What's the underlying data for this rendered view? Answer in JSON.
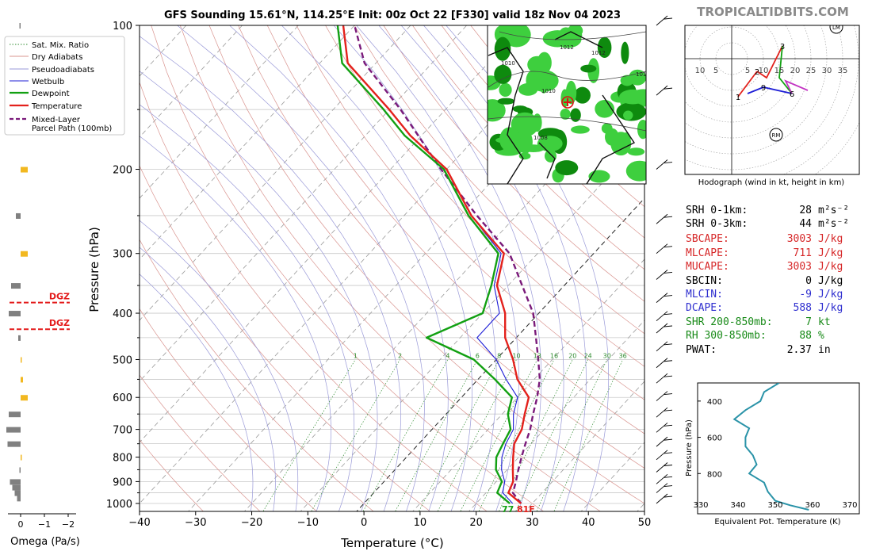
{
  "header": {
    "title": "GFS Sounding 15.61°N, 114.25°E Init: 00z Oct 22 [F330] valid 18z Nov 04 2023",
    "watermark": "TROPICALTIDBITS.COM"
  },
  "chart_data": [
    {
      "type": "line",
      "title": "",
      "xlabel": "Temperature (°C)",
      "ylabel": "Pressure (hPa)",
      "xlim": [
        -40,
        50
      ],
      "ylim": [
        1050,
        100
      ],
      "y_scale": "log",
      "xticks": [
        "−40",
        "−30",
        "−20",
        "−10",
        "0",
        "10",
        "20",
        "30",
        "40",
        "50"
      ],
      "yticks": [
        "100",
        "200",
        "300",
        "400",
        "500",
        "600",
        "700",
        "800",
        "900",
        "1000"
      ],
      "grid": true,
      "legend_position": "outside-left-top",
      "legend": [
        {
          "label": "Sat. Mix. Ratio",
          "color": "#2e8b2e",
          "style": "dotted"
        },
        {
          "label": "Dry Adiabats",
          "color": "#d9948f",
          "style": "solid"
        },
        {
          "label": "Pseudoadiabats",
          "color": "#9a9ad8",
          "style": "solid"
        },
        {
          "label": "Wetbulb",
          "color": "#1c1cd6",
          "style": "solid"
        },
        {
          "label": "Dewpoint",
          "color": "#12a012",
          "style": "solid"
        },
        {
          "label": "Temperature",
          "color": "#e3211c",
          "style": "solid"
        },
        {
          "label": "Mixed-Layer Parcel Path (100mb)",
          "color": "#7a1a7a",
          "style": "dashed"
        }
      ],
      "mixing_ratio_labels": [
        "1",
        "2",
        "4",
        "6",
        "8",
        "10",
        "13",
        "16",
        "20",
        "24",
        "30",
        "36"
      ],
      "series": [
        {
          "name": "Temperature",
          "points": [
            [
              28.0,
              1000
            ],
            [
              24.0,
              950
            ],
            [
              23.0,
              900
            ],
            [
              21.0,
              850
            ],
            [
              19.0,
              800
            ],
            [
              17.0,
              750
            ],
            [
              16.0,
              700
            ],
            [
              14.0,
              650
            ],
            [
              12.0,
              600
            ],
            [
              7.0,
              550
            ],
            [
              3.0,
              500
            ],
            [
              -2.0,
              450
            ],
            [
              -6.0,
              400
            ],
            [
              -12.0,
              350
            ],
            [
              -16.0,
              300
            ],
            [
              -28.0,
              250
            ],
            [
              -40.0,
              200
            ],
            [
              -52.0,
              170
            ],
            [
              -60.0,
              150
            ],
            [
              -75.0,
              120
            ],
            [
              -82.0,
              100
            ]
          ]
        },
        {
          "name": "Dewpoint",
          "points": [
            [
              26.0,
              1000
            ],
            [
              22.0,
              950
            ],
            [
              21.0,
              900
            ],
            [
              18.0,
              850
            ],
            [
              16.0,
              800
            ],
            [
              15.0,
              750
            ],
            [
              14.0,
              700
            ],
            [
              11.0,
              650
            ],
            [
              9.0,
              600
            ],
            [
              3.0,
              550
            ],
            [
              -4.0,
              500
            ],
            [
              -16.0,
              450
            ],
            [
              -10.0,
              400
            ],
            [
              -13.0,
              350
            ],
            [
              -17.0,
              300
            ],
            [
              -28.5,
              250
            ],
            [
              -40.5,
              200
            ],
            [
              -53.0,
              170
            ],
            [
              -61.0,
              150
            ],
            [
              -76.0,
              120
            ],
            [
              -83.0,
              100
            ]
          ]
        },
        {
          "name": "Wetbulb",
          "points": [
            [
              26.5,
              1000
            ],
            [
              23.0,
              950
            ],
            [
              21.5,
              900
            ],
            [
              19.0,
              850
            ],
            [
              17.0,
              800
            ],
            [
              15.5,
              750
            ],
            [
              14.5,
              700
            ],
            [
              12.0,
              650
            ],
            [
              10.0,
              600
            ],
            [
              5.0,
              550
            ],
            [
              0.0,
              500
            ],
            [
              -7.0,
              450
            ],
            [
              -7.0,
              400
            ],
            [
              -12.5,
              350
            ],
            [
              -16.5,
              300
            ],
            [
              -28.0,
              250
            ],
            [
              -40.0,
              200
            ]
          ]
        },
        {
          "name": "Mixed-Layer Parcel Path (100mb)",
          "points": [
            [
              28.0,
              1000
            ],
            [
              24.8,
              950
            ],
            [
              23.5,
              900
            ],
            [
              22.0,
              850
            ],
            [
              20.5,
              800
            ],
            [
              19.0,
              750
            ],
            [
              17.5,
              700
            ],
            [
              15.5,
              650
            ],
            [
              13.5,
              600
            ],
            [
              11.0,
              550
            ],
            [
              7.5,
              500
            ],
            [
              3.5,
              450
            ],
            [
              -1.0,
              400
            ],
            [
              -7.5,
              350
            ],
            [
              -15.0,
              300
            ],
            [
              -27.0,
              250
            ],
            [
              -41.0,
              200
            ],
            [
              -58.0,
              150
            ],
            [
              -72.0,
              120
            ],
            [
              -80.0,
              100
            ]
          ]
        }
      ],
      "annotations": {
        "sfc_temp": "81F",
        "sfc_dewpoint": "77"
      }
    },
    {
      "type": "bar",
      "title": "",
      "xlabel": "Omega (Pa/s)",
      "xticks": [
        "0",
        "−1",
        "−2"
      ],
      "xlim": [
        1.0,
        -2.0
      ],
      "dgz_label": "DGZ",
      "dgz_levels_hpa": [
        380,
        432
      ],
      "values": [
        {
          "p": 100,
          "omega": 0.05
        },
        {
          "p": 200,
          "omega": -0.3
        },
        {
          "p": 250,
          "omega": 0.2
        },
        {
          "p": 300,
          "omega": -0.3
        },
        {
          "p": 350,
          "omega": 0.4
        },
        {
          "p": 400,
          "omega": 0.5
        },
        {
          "p": 450,
          "omega": 0.1
        },
        {
          "p": 500,
          "omega": -0.05
        },
        {
          "p": 550,
          "omega": -0.1
        },
        {
          "p": 600,
          "omega": -0.3
        },
        {
          "p": 650,
          "omega": 0.5
        },
        {
          "p": 700,
          "omega": 0.6
        },
        {
          "p": 750,
          "omega": 0.55
        },
        {
          "p": 800,
          "omega": -0.05
        },
        {
          "p": 850,
          "omega": 0.05
        },
        {
          "p": 900,
          "omega": 0.45
        },
        {
          "p": 925,
          "omega": 0.35
        },
        {
          "p": 950,
          "omega": 0.25
        },
        {
          "p": 975,
          "omega": 0.15
        }
      ]
    },
    {
      "type": "line",
      "title": "",
      "caption": "Hodograph (wind in kt, height in km)",
      "xticks": [
        "10",
        "5",
        "5",
        "10",
        "15",
        "20",
        "25",
        "30",
        "35"
      ],
      "markers": [
        "1",
        "2",
        "3",
        "6",
        "9",
        "LM",
        "RM"
      ],
      "series": [
        {
          "name": "0-1km",
          "color": "#e3211c",
          "points": [
            [
              2.0,
              -12.0
            ],
            [
              8.0,
              -4.0
            ]
          ]
        },
        {
          "name": "1-3km",
          "color": "#e3211c",
          "points": [
            [
              8.0,
              -4.0
            ],
            [
              11.0,
              -6.0
            ],
            [
              16.0,
              4.0
            ]
          ]
        },
        {
          "name": "3-6km",
          "color": "#12a012",
          "points": [
            [
              16.0,
              4.0
            ],
            [
              15.0,
              -6.0
            ],
            [
              19.0,
              -11.0
            ]
          ]
        },
        {
          "name": "6-9km",
          "color": "#1c1cd6",
          "points": [
            [
              19.0,
              -11.0
            ],
            [
              10.0,
              -9.0
            ],
            [
              5.0,
              -11.0
            ]
          ]
        },
        {
          "name": "upper",
          "color": "#c232c2",
          "points": [
            [
              19.0,
              -11.0
            ],
            [
              17.0,
              -7.0
            ],
            [
              24.0,
              -10.0
            ]
          ]
        }
      ]
    },
    {
      "type": "line",
      "title": "",
      "xlabel": "Equivalent Pot. Temperature (K)",
      "ylabel": "Pressure (hPa)",
      "xlim": [
        330,
        370
      ],
      "xticks": [
        "330",
        "340",
        "350",
        "360",
        "370"
      ],
      "yticks": [
        "400",
        "600",
        "800"
      ],
      "series": [
        {
          "name": "Theta-e",
          "color": "#2a93a8",
          "points": [
            [
              359,
              1000
            ],
            [
              354,
              975
            ],
            [
              350,
              950
            ],
            [
              348,
              900
            ],
            [
              347,
              850
            ],
            [
              343,
              800
            ],
            [
              345,
              750
            ],
            [
              344,
              700
            ],
            [
              342,
              650
            ],
            [
              342,
              600
            ],
            [
              343,
              550
            ],
            [
              339,
              500
            ],
            [
              342,
              450
            ],
            [
              346,
              400
            ],
            [
              347,
              350
            ],
            [
              351,
              300
            ]
          ]
        }
      ]
    }
  ],
  "indices": [
    {
      "label": "SRH 0-1km:",
      "value": "28",
      "unit": "m²s⁻²",
      "color": "#000000"
    },
    {
      "label": "SRH 0-3km:",
      "value": "44",
      "unit": "m²s⁻²",
      "color": "#000000"
    },
    {
      "label": "SBCAPE:",
      "value": "3003",
      "unit": "J/kg",
      "color": "#d62728"
    },
    {
      "label": "MLCAPE:",
      "value": "711",
      "unit": "J/kg",
      "color": "#d62728"
    },
    {
      "label": "MUCAPE:",
      "value": "3003",
      "unit": "J/kg",
      "color": "#d62728"
    },
    {
      "label": "SBCIN:",
      "value": "0",
      "unit": "J/kg",
      "color": "#000000"
    },
    {
      "label": "MLCIN:",
      "value": "-9",
      "unit": "J/kg",
      "color": "#2f2fcf"
    },
    {
      "label": "DCAPE:",
      "value": "588",
      "unit": "J/kg",
      "color": "#2f2fcf"
    },
    {
      "label": "SHR 200-850mb:",
      "value": "7",
      "unit": "kt",
      "color": "#188a18"
    },
    {
      "label": "RH 300-850mb:",
      "value": "88",
      "unit": "%",
      "color": "#188a18"
    },
    {
      "label": "PWAT:",
      "value": "2.37",
      "unit": "in",
      "color": "#000000"
    }
  ],
  "map_labels": [
    "1012",
    "1010",
    "1010",
    "1008",
    "1010",
    "1012"
  ],
  "colors": {
    "temperature": "#e3211c",
    "dewpoint": "#12a012",
    "wetbulb": "#1c1cd6",
    "parcel": "#7a1a7a",
    "dry_adiabat": "#d9948f",
    "pseudoadiabat": "#9a9ad8",
    "mix_ratio": "#2e8b2e",
    "omega_up": "#f2b820",
    "omega_down": "#808080",
    "dgz": "#e31a1a"
  }
}
